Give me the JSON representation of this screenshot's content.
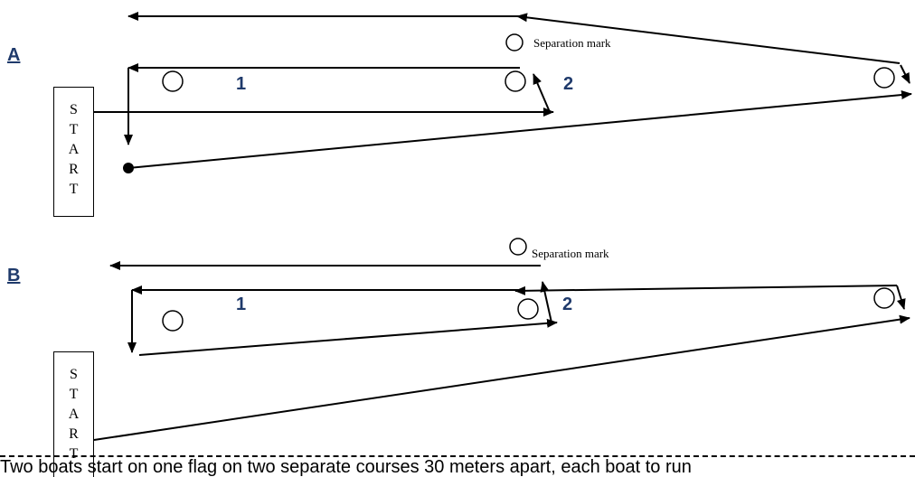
{
  "diagram_a": {
    "label": "A",
    "separation_mark_label": "Separation mark",
    "leg_1_label": "1",
    "leg_2_label": "2",
    "start_letters": [
      "S",
      "T",
      "A",
      "R",
      "T"
    ]
  },
  "diagram_b": {
    "label": "B",
    "separation_mark_label": "Separation mark",
    "leg_1_label": "1",
    "leg_2_label": "2",
    "start_letters": [
      "S",
      "T",
      "A",
      "R",
      "T"
    ]
  },
  "caption": {
    "text": "Two boats start on one flag on two separate courses 30 meters apart, each boat to run"
  },
  "colors": {
    "label_color": "#1f3a6b",
    "line_color": "#000000"
  }
}
